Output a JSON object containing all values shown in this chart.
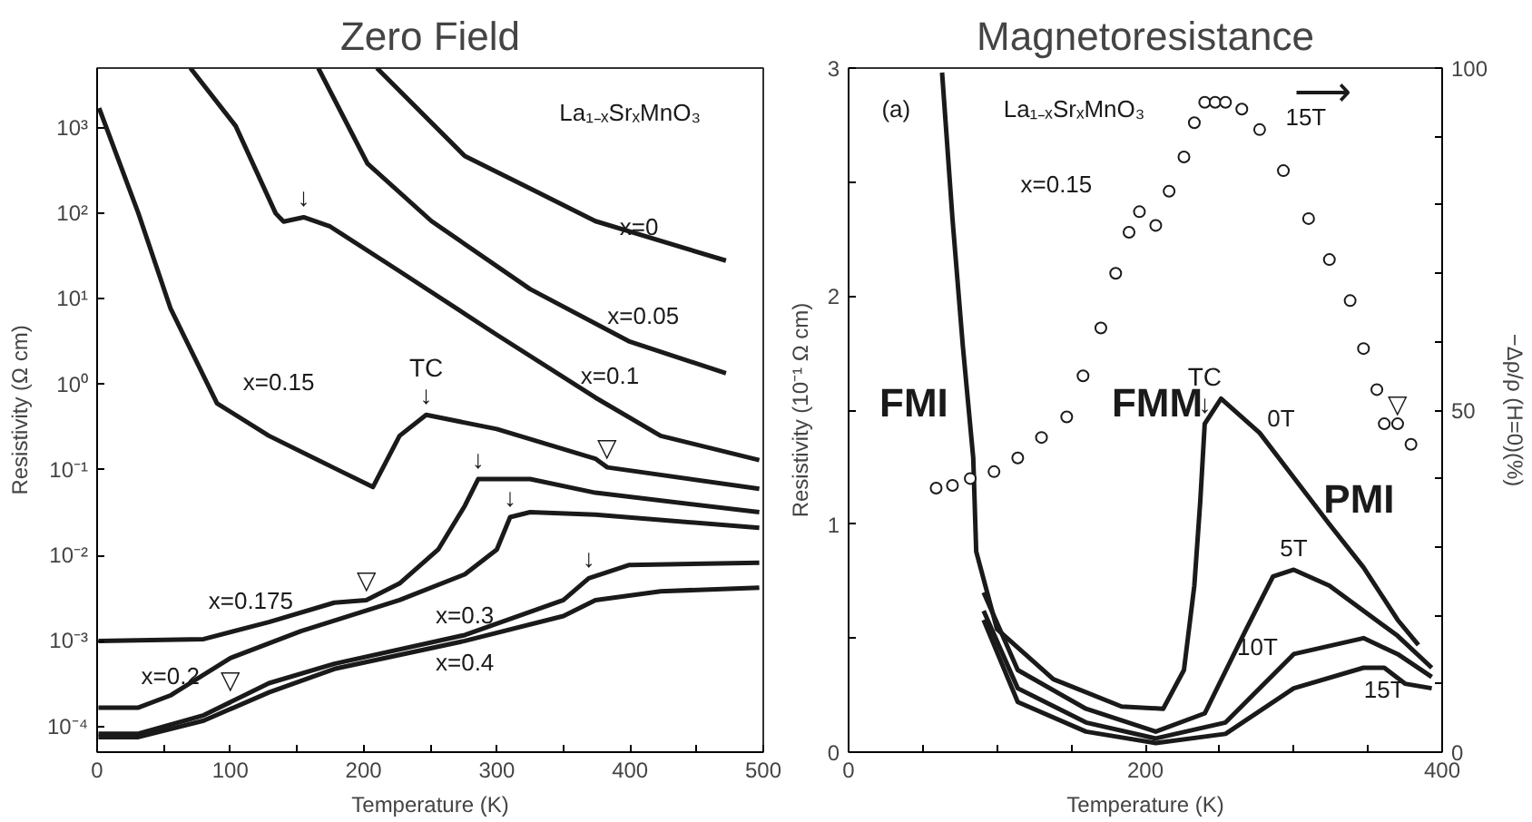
{
  "chart_data": [
    {
      "type": "line",
      "title": "Zero Field",
      "xlabel": "Temperature (K)",
      "ylabel": "Resistivity (Ω cm)",
      "log": "y",
      "grid": false,
      "xlim": [
        0,
        500
      ],
      "xticks": [
        0,
        {
          "value": 50,
          "label": null
        },
        100,
        {
          "value": 150,
          "label": null
        },
        200,
        {
          "value": 250,
          "label": null
        },
        300,
        {
          "value": 350,
          "label": null
        },
        400,
        {
          "value": 450,
          "label": null
        },
        500
      ],
      "ylim": [
        5e-05,
        5000
      ],
      "yticks": [
        {
          "value": 0.0001,
          "label": "10⁻⁴"
        },
        {
          "value": 0.001,
          "label": "10⁻³"
        },
        {
          "value": 0.01,
          "label": "10⁻²"
        },
        {
          "value": 0.1,
          "label": "10⁻¹"
        },
        {
          "value": 1,
          "label": "10⁰"
        },
        {
          "value": 10,
          "label": "10¹"
        },
        {
          "value": 100,
          "label": "10²"
        },
        {
          "value": 1000,
          "label": "10³"
        }
      ],
      "series": [
        {
          "name": "x=0",
          "color": "#1a1a1a",
          "x": [
            210,
            276,
            325,
            374,
            472
          ],
          "values": [
            5000,
            467,
            195,
            81,
            28
          ]
        },
        {
          "name": "x=0.05",
          "color": "#1a1a1a",
          "x": [
            166,
            203,
            251,
            325,
            399,
            472
          ],
          "values": [
            5000,
            380,
            81,
            13,
            3.2,
            1.35
          ]
        },
        {
          "name": "x=0.1",
          "color": "#1a1a1a",
          "x": [
            70,
            104,
            134,
            140,
            155,
            175,
            227,
            300,
            374,
            423,
            497
          ],
          "values": [
            5000,
            1050,
            100,
            80,
            90,
            70,
            21,
            3.8,
            0.7,
            0.25,
            0.13
          ]
        },
        {
          "name": "x=0.15",
          "color": "#1a1a1a",
          "x": [
            1.5,
            31,
            55,
            90,
            129,
            178,
            207,
            227,
            247,
            300,
            374,
            383,
            497
          ],
          "values": [
            1700,
            100,
            7.8,
            0.6,
            0.25,
            0.105,
            0.063,
            0.25,
            0.44,
            0.3,
            0.135,
            0.107,
            0.06
          ]
        },
        {
          "name": "x=0.175",
          "color": "#1a1a1a",
          "x": [
            1,
            80,
            129,
            178,
            202,
            227,
            256,
            276,
            286,
            325,
            374,
            497
          ],
          "values": [
            0.001,
            0.00105,
            0.00166,
            0.0028,
            0.003,
            0.0047,
            0.0117,
            0.038,
            0.078,
            0.078,
            0.054,
            0.032
          ]
        },
        {
          "name": "x=0.2",
          "color": "#1a1a1a",
          "x": [
            1,
            31,
            55,
            100,
            153,
            227,
            276,
            300,
            310,
            325,
            374,
            497
          ],
          "values": [
            0.000166,
            0.000166,
            0.00023,
            0.00063,
            0.0013,
            0.003,
            0.006,
            0.0117,
            0.028,
            0.032,
            0.03,
            0.021
          ]
        },
        {
          "name": "x=0.3",
          "color": "#1a1a1a",
          "x": [
            1,
            31,
            80,
            129,
            178,
            276,
            350,
            369,
            399,
            497
          ],
          "values": [
            8.2e-05,
            8.2e-05,
            0.000135,
            0.00032,
            0.00054,
            0.00117,
            0.003,
            0.0054,
            0.0077,
            0.0082
          ]
        },
        {
          "name": "x=0.4",
          "color": "#1a1a1a",
          "x": [
            1,
            31,
            80,
            129,
            178,
            276,
            350,
            374,
            423,
            497
          ],
          "values": [
            7.5e-05,
            7.5e-05,
            0.000117,
            0.00025,
            0.00047,
            0.001,
            0.00195,
            0.003,
            0.0038,
            0.0042
          ]
        }
      ],
      "annotations": [
        "La₁₋ₓSrₓMnO₃",
        {
          "text": "↓",
          "x": 247,
          "y": 0.44
        },
        {
          "text": "TC",
          "x": 247,
          "y": 0.44
        },
        {
          "text": "↓",
          "x": 155,
          "y": 90
        },
        {
          "text": "↓",
          "x": 286,
          "y": 0.078
        },
        {
          "text": "↓",
          "x": 310,
          "y": 0.028
        },
        {
          "text": "↓",
          "x": 369,
          "y": 0.0054
        },
        {
          "text": "▽",
          "x": 383,
          "y": 0.107
        },
        {
          "text": "▽",
          "x": 202,
          "y": 0.003
        },
        {
          "text": "▽",
          "x": 100,
          "y": 0.00063
        }
      ]
    },
    {
      "type": "line",
      "title": "Magnetoresistance",
      "xlabel": "Temperature (K)",
      "ylabel": "Resistivity (10⁻¹ Ω cm)",
      "y2label": "−Δρ/ρ (H=0)(%)",
      "grid": false,
      "xlim": [
        0,
        400
      ],
      "xticks": [
        0,
        {
          "value": 50,
          "label": null
        },
        {
          "value": 100,
          "label": null
        },
        {
          "value": 150,
          "label": null
        },
        200,
        {
          "value": 250,
          "label": null
        },
        {
          "value": 300,
          "label": null
        },
        {
          "value": 350,
          "label": null
        },
        400
      ],
      "ylim": [
        0,
        3
      ],
      "yticks": [
        0,
        {
          "value": 0.5,
          "label": null
        },
        1,
        {
          "value": 1.5,
          "label": null
        },
        2,
        {
          "value": 2.5,
          "label": null
        },
        3
      ],
      "y2lim": [
        0,
        100
      ],
      "y2ticks": [
        0,
        {
          "value": 10,
          "label": null
        },
        {
          "value": 20,
          "label": null
        },
        {
          "value": 30,
          "label": null
        },
        {
          "value": 40,
          "label": null
        },
        50,
        {
          "value": 60,
          "label": null
        },
        {
          "value": 70,
          "label": null
        },
        {
          "value": 80,
          "label": null
        },
        {
          "value": 90,
          "label": null
        },
        100
      ],
      "series": [
        {
          "name": "0T",
          "color": "#1a1a1a",
          "x": [
            63,
            70,
            77,
            84,
            86,
            100,
            138,
            184,
            212,
            226,
            233,
            237,
            240,
            251,
            277,
            324,
            347,
            370,
            384
          ],
          "values": [
            2.98,
            2.34,
            1.78,
            1.29,
            0.88,
            0.54,
            0.32,
            0.2,
            0.19,
            0.36,
            0.73,
            1.1,
            1.44,
            1.55,
            1.4,
            1.0,
            0.81,
            0.58,
            0.47
          ]
        },
        {
          "name": "5T",
          "color": "#1a1a1a",
          "x": [
            91,
            114,
            160,
            207,
            240,
            268,
            286,
            300,
            324,
            370,
            393
          ],
          "values": [
            0.7,
            0.36,
            0.19,
            0.09,
            0.17,
            0.54,
            0.77,
            0.8,
            0.73,
            0.51,
            0.37
          ]
        },
        {
          "name": "10T",
          "color": "#1a1a1a",
          "x": [
            91,
            114,
            160,
            207,
            254,
            300,
            347,
            370,
            393
          ],
          "values": [
            0.62,
            0.28,
            0.13,
            0.06,
            0.13,
            0.43,
            0.5,
            0.43,
            0.33
          ]
        },
        {
          "name": "15T",
          "color": "#1a1a1a",
          "x": [
            91,
            114,
            160,
            207,
            254,
            300,
            347,
            361,
            375,
            393
          ],
          "values": [
            0.58,
            0.22,
            0.09,
            0.04,
            0.08,
            0.28,
            0.37,
            0.37,
            0.3,
            0.28
          ]
        },
        {
          "name": "15T",
          "type": "scatter",
          "axis": "y2",
          "marker": "circle",
          "color": "#1a1a1a",
          "x": [
            59,
            70,
            82,
            98,
            114,
            130,
            147,
            158,
            170,
            180,
            189,
            196,
            207,
            216,
            226,
            233,
            240,
            247,
            254,
            265,
            277,
            293,
            310,
            324,
            338,
            347,
            356,
            361,
            370,
            379
          ],
          "values": [
            38.6,
            39,
            40,
            41,
            43,
            46,
            49,
            55,
            62,
            70,
            76,
            79,
            77,
            82,
            87,
            92,
            95,
            95,
            95,
            94,
            91,
            85,
            78,
            72,
            66,
            59,
            53,
            48,
            48,
            45
          ]
        }
      ],
      "annotations": [
        "(a)",
        "La₁₋ₓSrₓMnO₃",
        "x=0.15",
        "FMI",
        "FMM",
        "PMI",
        "⟶",
        {
          "text": "↓",
          "x": 240,
          "y": 1.44
        },
        {
          "text": "TC",
          "x": 240,
          "y": 1.44
        },
        {
          "text": "▽",
          "x": 370,
          "y": 1.44
        }
      ]
    }
  ]
}
